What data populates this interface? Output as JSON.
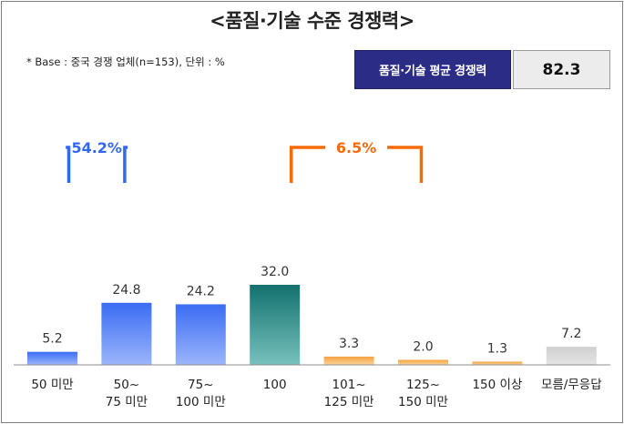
{
  "title": "<품질·기술 수준 경쟁력>",
  "note": "* Base : 중국 경쟁 업체(n=153), 단위 : %",
  "kpi": {
    "label": "품질·기술 평균 경쟁력",
    "value": "82.3"
  },
  "brackets": [
    {
      "label": "54.2%",
      "from": 1,
      "to": 2,
      "color": "#3467f0"
    },
    {
      "label": "6.5%",
      "from": 4,
      "to": 6,
      "color": "#f46a0c"
    }
  ],
  "colors": {
    "blue_top": "#3a6cf4",
    "blue_bottom": "#9cb5fb",
    "teal_top": "#13716e",
    "teal_bottom": "#77c1bd",
    "orange_top": "#f4a23e",
    "orange_bottom": "#fcd59a",
    "gray_top": "#cfcfcf",
    "gray_bottom": "#e4e4e4"
  },
  "chart_data": {
    "type": "bar",
    "categories": [
      "50 미만",
      "50~\n75 미만",
      "75~\n100 미만",
      "100",
      "101~\n125 미만",
      "125~\n150 미만",
      "150 이상",
      "모름/무응답"
    ],
    "values": [
      5.2,
      24.8,
      24.2,
      32.0,
      3.3,
      2.0,
      1.3,
      7.2
    ],
    "value_labels": [
      "5.2",
      "24.8",
      "24.2",
      "32.0",
      "3.3",
      "2.0",
      "1.3",
      "7.2"
    ],
    "color_groups": [
      "blue",
      "blue",
      "blue",
      "teal",
      "orange",
      "orange",
      "orange",
      "gray"
    ],
    "title": "<품질·기술 수준 경쟁력>",
    "xlabel": "",
    "ylabel": "",
    "ylim": [
      0,
      32
    ],
    "grid": false,
    "legend": "none"
  }
}
